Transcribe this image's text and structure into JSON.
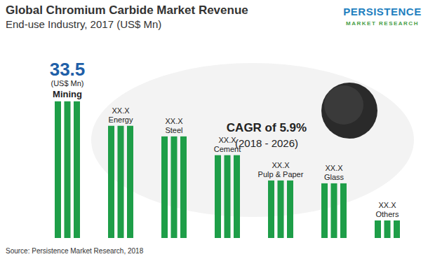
{
  "chart_data": {
    "type": "bar",
    "title": "Global Chromium Carbide Market Revenue",
    "subtitle": "End-use Industry, 2017 (US$ Mn)",
    "categories": [
      "Mining",
      "Energy",
      "Steel",
      "Cement",
      "Pulp & Paper",
      "Glass",
      "Others"
    ],
    "values": [
      33.5,
      27.5,
      24.9,
      20.3,
      14.1,
      13.4,
      4.3
    ],
    "value_labels": [
      "33.5",
      "XX.X",
      "XX.X",
      "XX.X",
      "XX.X",
      "XX.X",
      "XX.X"
    ],
    "unit_label": "(US$ Mn)",
    "annotations": [
      "CAGR of 5.9%",
      "(2018 - 2026)"
    ],
    "source": "Source: Persistence Market Research, 2018",
    "logo": [
      "PERSISTENCE",
      "MARKET RESEARCH"
    ],
    "color": "#1e9e48",
    "ylim": [
      0,
      35
    ],
    "data_labels": true,
    "tick_labels": false,
    "grid": false
  }
}
